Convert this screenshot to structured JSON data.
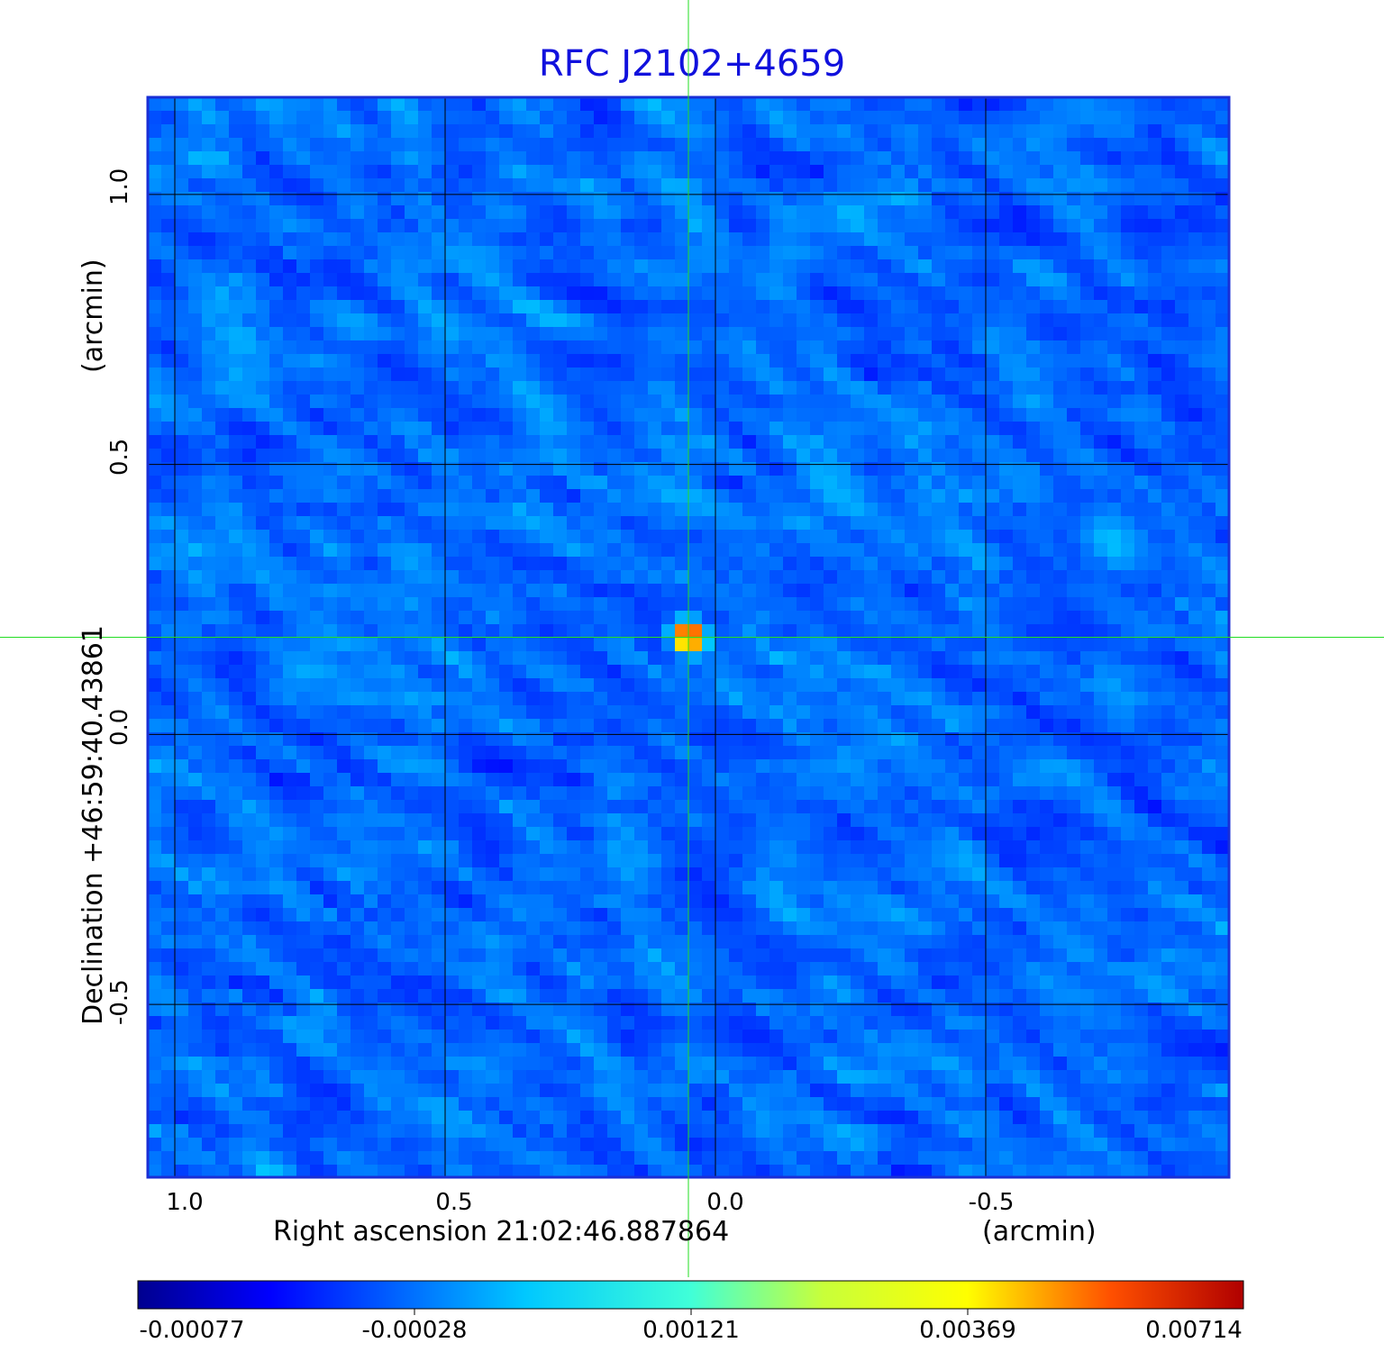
{
  "chart_data": {
    "type": "heatmap",
    "title": "RFC J2102+4659",
    "xlabel": "Right ascension  21:02:46.887864",
    "xlabel_unit": "(arcmin)",
    "ylabel": "Declination  +46:59:40.43861",
    "ylabel_unit": "(arcmin)",
    "x_ticks": [
      "1.0",
      "0.5",
      "0.0",
      "-0.5"
    ],
    "y_ticks": [
      "1.0",
      "0.5",
      "0.0",
      "-0.5"
    ],
    "x_tick_values": [
      1.0,
      0.5,
      0.0,
      -0.5
    ],
    "y_tick_values": [
      1.0,
      0.5,
      0.0,
      -0.5
    ],
    "xlim": [
      1.05,
      -0.95
    ],
    "ylim": [
      -0.82,
      1.18
    ],
    "grid": true,
    "crosshair": {
      "x": 0.05,
      "y": 0.18
    },
    "source_peak": {
      "x": 0.05,
      "y": 0.18,
      "value": 0.00714
    },
    "colorbar": {
      "ticks": [
        "-0.00077",
        "-0.00028",
        "0.00121",
        "0.00369",
        "0.00714"
      ],
      "min": -0.00077,
      "max": 0.00714,
      "colormap": "jet"
    },
    "colors": {
      "title": "#1111dd",
      "frame": "#1a2fd6",
      "grid": "#000000",
      "crosshair": "#22dd22"
    }
  }
}
